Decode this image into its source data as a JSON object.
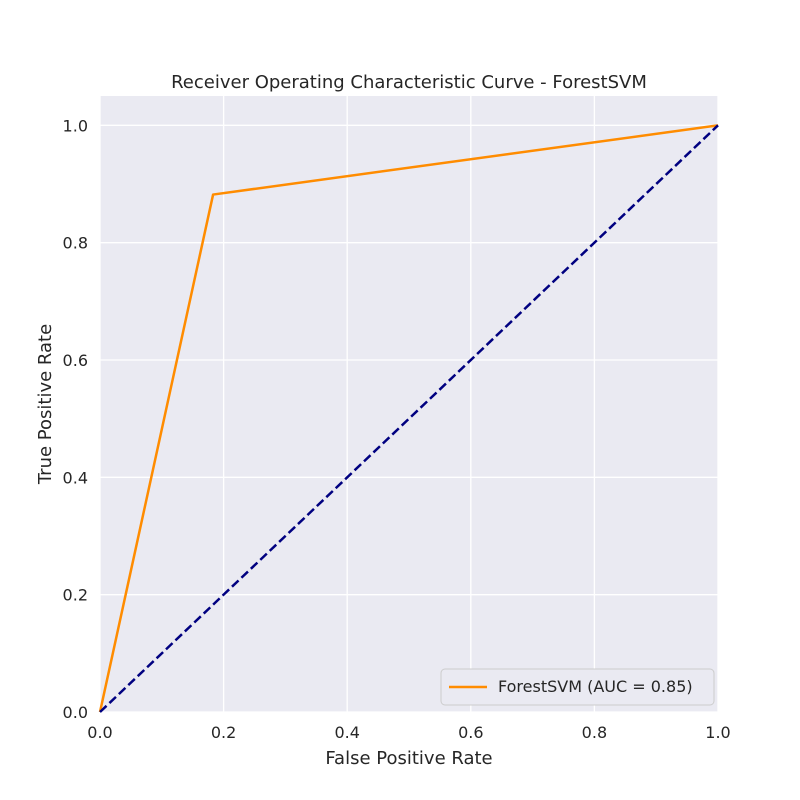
{
  "chart_data": {
    "type": "line",
    "title": "Receiver Operating Characteristic Curve - ForestSVM",
    "xlabel": "False Positive Rate",
    "ylabel": "True Positive Rate",
    "xlim": [
      0.0,
      1.0
    ],
    "ylim": [
      0.0,
      1.05
    ],
    "xticks": [
      0.0,
      0.2,
      0.4,
      0.6,
      0.8,
      1.0
    ],
    "yticks": [
      0.0,
      0.2,
      0.4,
      0.6,
      0.8,
      1.0
    ],
    "xtick_labels": [
      "0.0",
      "0.2",
      "0.4",
      "0.6",
      "0.8",
      "1.0"
    ],
    "ytick_labels": [
      "0.0",
      "0.2",
      "0.4",
      "0.6",
      "0.8",
      "1.0"
    ],
    "grid": true,
    "legend_position": "bottom-right",
    "series": [
      {
        "name": "ForestSVM (AUC = 0.85)",
        "color": "#ff8c00",
        "style": "solid",
        "x": [
          0.0,
          0.183,
          1.0
        ],
        "y": [
          0.0,
          0.882,
          1.0
        ]
      },
      {
        "color": "#000080",
        "style": "dashed",
        "x": [
          0.0,
          1.0
        ],
        "y": [
          0.0,
          1.0
        ]
      }
    ],
    "colors": {
      "plot_background": "#eaeaf2",
      "grid": "#ffffff",
      "text": "#262626"
    }
  }
}
